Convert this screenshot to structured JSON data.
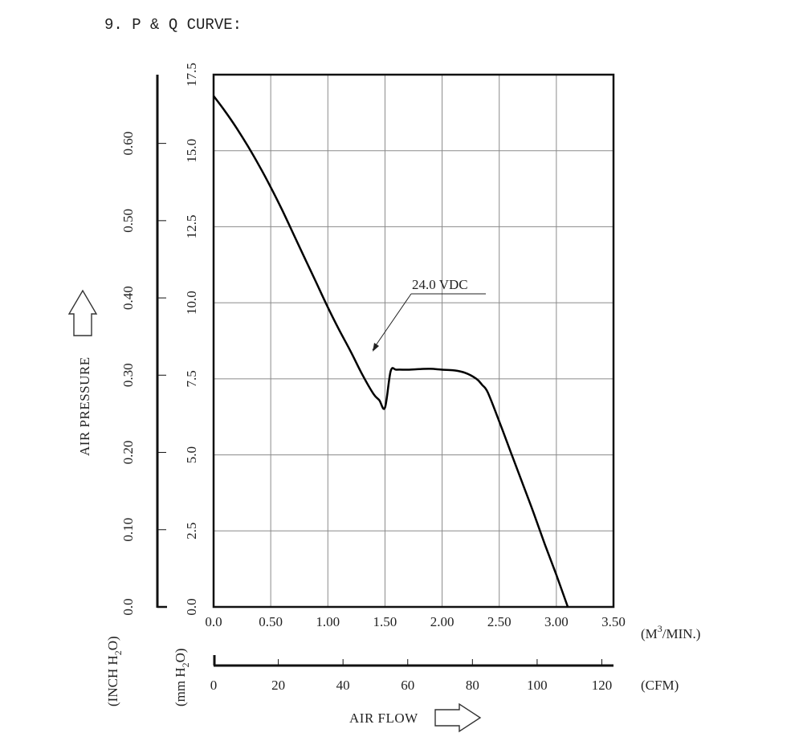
{
  "title": "9. P & Q CURVE:",
  "chart_data": {
    "type": "line",
    "title": "9. P & Q CURVE:",
    "xlabel": "AIR FLOW",
    "ylabel": "AIR PRESSURE",
    "x_unit": "(M³/MIN.)",
    "x_unit_parts": {
      "pre": "(M",
      "sup": "3",
      "post": "/MIN.)"
    },
    "x2_unit": "(CFM)",
    "y_unit_mm": {
      "pre": "(mm H",
      "sub": "2",
      "post": "O)"
    },
    "y_unit_inch": {
      "pre": "(INCH H",
      "sub": "2",
      "post": "O)"
    },
    "xlim": [
      0,
      3.5
    ],
    "ylim": [
      0,
      17.5
    ],
    "grid": true,
    "x_ticks": [
      "0.0",
      "0.50",
      "1.00",
      "1.50",
      "2.00",
      "2.50",
      "3.00",
      "3.50"
    ],
    "x_tick_values": [
      0,
      0.5,
      1.0,
      1.5,
      2.0,
      2.5,
      3.0,
      3.5
    ],
    "x2_ticks": [
      "0",
      "20",
      "40",
      "60",
      "80",
      "100",
      "120"
    ],
    "x2_tick_values": [
      0,
      20,
      40,
      60,
      80,
      100,
      120
    ],
    "x2_lim": [
      0,
      123.6
    ],
    "y_ticks_mm": [
      "0.0",
      "2.5",
      "5.0",
      "7.5",
      "10.0",
      "12.5",
      "15.0",
      "17.5"
    ],
    "y_tick_values_mm": [
      0,
      2.5,
      5.0,
      7.5,
      10.0,
      12.5,
      15.0,
      17.5
    ],
    "y_ticks_inch": [
      "0.0",
      "0.10",
      "0.20",
      "0.30",
      "0.40",
      "0.50",
      "0.60"
    ],
    "y_tick_values_inch": [
      0,
      0.1,
      0.2,
      0.3,
      0.4,
      0.5,
      0.6
    ],
    "inch_to_mm": 25.4,
    "series": [
      {
        "name": "24.0 VDC",
        "x": [
          0.0,
          0.1,
          0.2,
          0.3,
          0.4,
          0.5,
          0.6,
          0.7,
          0.8,
          0.9,
          1.0,
          1.1,
          1.2,
          1.3,
          1.4,
          1.45,
          1.5,
          1.55,
          1.6,
          1.7,
          1.8,
          1.9,
          2.0,
          2.1,
          2.2,
          2.3,
          2.35,
          2.4,
          2.5,
          2.6,
          2.7,
          2.8,
          2.9,
          3.0,
          3.1
        ],
        "y": [
          16.8,
          16.3,
          15.75,
          15.15,
          14.5,
          13.8,
          13.05,
          12.25,
          11.45,
          10.65,
          9.85,
          9.1,
          8.4,
          7.65,
          7.0,
          6.8,
          6.55,
          7.75,
          7.8,
          7.8,
          7.82,
          7.83,
          7.8,
          7.78,
          7.7,
          7.5,
          7.3,
          7.05,
          6.1,
          5.1,
          4.1,
          3.1,
          2.05,
          1.05,
          0.0
        ]
      }
    ],
    "annotation": "24.0 VDC"
  }
}
